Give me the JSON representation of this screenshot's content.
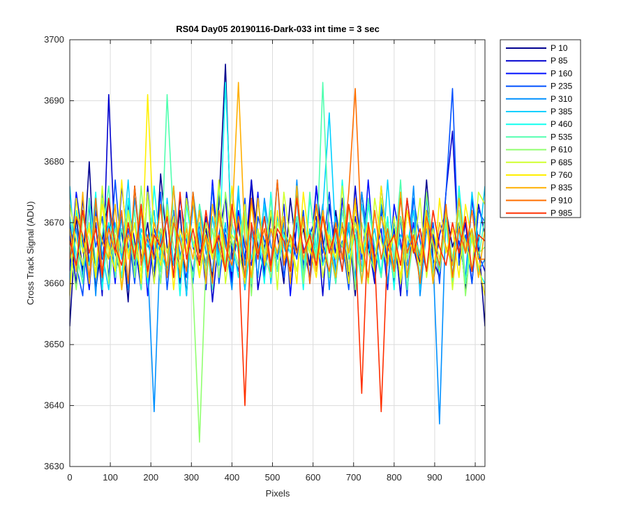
{
  "chart_data": {
    "type": "line",
    "title": "RS04 Day05 20190116-Dark-033 int time = 3 sec",
    "xlabel": "Pixels",
    "ylabel": "Cross Track Signal (ADU)",
    "xlim": [
      0,
      1024
    ],
    "ylim": [
      3630,
      3700
    ],
    "x_ticks": [
      0,
      100,
      200,
      300,
      400,
      500,
      600,
      700,
      800,
      900,
      1000
    ],
    "y_ticks": [
      3630,
      3640,
      3650,
      3660,
      3670,
      3680,
      3690,
      3700
    ],
    "grid": true,
    "legend_position": "outside-top-right",
    "n_points": 1024,
    "series_note": "each series is dark-frame noise around ~3667 ADU; sampled representative values every 16 pixels",
    "x": [
      0,
      16,
      32,
      48,
      64,
      80,
      96,
      112,
      128,
      144,
      160,
      176,
      192,
      208,
      224,
      240,
      256,
      272,
      288,
      304,
      320,
      336,
      352,
      368,
      384,
      400,
      416,
      432,
      448,
      464,
      480,
      496,
      512,
      528,
      544,
      560,
      576,
      592,
      608,
      624,
      640,
      656,
      672,
      688,
      704,
      720,
      736,
      752,
      768,
      784,
      800,
      816,
      832,
      848,
      864,
      880,
      896,
      912,
      928,
      944,
      960,
      976,
      992,
      1008
    ],
    "series": [
      {
        "name": "P 10",
        "color": "#00008F",
        "values": [
          3653,
          3671,
          3662,
          3680,
          3659,
          3667,
          3674,
          3661,
          3669,
          3657,
          3676,
          3664,
          3670,
          3660,
          3678,
          3666,
          3663,
          3672,
          3658,
          3675,
          3665,
          3669,
          3661,
          3673,
          3696,
          3664,
          3670,
          3659,
          3677,
          3666,
          3662,
          3671,
          3668,
          3660,
          3674,
          3665,
          3669,
          3663,
          3676,
          3667,
          3661,
          3672,
          3664,
          3670,
          3658,
          3675,
          3666,
          3662,
          3673,
          3668,
          3660,
          3671,
          3665,
          3669,
          3663,
          3677,
          3664,
          3661,
          3672,
          3666,
          3670,
          3659,
          3674,
          3667
        ]
      },
      {
        "name": "P 85",
        "color": "#0000CF",
        "values": [
          3668,
          3660,
          3674,
          3663,
          3670,
          3658,
          3691,
          3665,
          3661,
          3673,
          3667,
          3659,
          3676,
          3664,
          3669,
          3662,
          3672,
          3660,
          3675,
          3666,
          3663,
          3671,
          3657,
          3668,
          3674,
          3661,
          3670,
          3664,
          3677,
          3659,
          3666,
          3672,
          3662,
          3669,
          3660,
          3675,
          3663,
          3668,
          3671,
          3658,
          3673,
          3665,
          3670,
          3661,
          3676,
          3664,
          3667,
          3660,
          3672,
          3663,
          3669,
          3658,
          3674,
          3666,
          3661,
          3671,
          3668,
          3662,
          3675,
          3685,
          3664,
          3670,
          3660,
          3673
        ]
      },
      {
        "name": "P 160",
        "color": "#0010FF",
        "values": [
          3662,
          3675,
          3667,
          3659,
          3672,
          3664,
          3670,
          3660,
          3676,
          3666,
          3663,
          3673,
          3658,
          3669,
          3665,
          3671,
          3661,
          3674,
          3667,
          3662,
          3670,
          3659,
          3677,
          3664,
          3668,
          3660,
          3672,
          3666,
          3663,
          3675,
          3661,
          3669,
          3664,
          3673,
          3658,
          3670,
          3666,
          3661,
          3676,
          3663,
          3668,
          3660,
          3674,
          3665,
          3671,
          3662,
          3677,
          3664,
          3669,
          3659,
          3673,
          3667,
          3661,
          3670,
          3664,
          3675,
          3660,
          3668,
          3672,
          3663,
          3667,
          3661,
          3674,
          3665
        ]
      },
      {
        "name": "P 235",
        "color": "#0050FF",
        "values": [
          3670,
          3663,
          3658,
          3674,
          3666,
          3671,
          3661,
          3677,
          3664,
          3669,
          3660,
          3672,
          3667,
          3662,
          3675,
          3659,
          3670,
          3665,
          3661,
          3673,
          3668,
          3663,
          3676,
          3660,
          3669,
          3666,
          3662,
          3674,
          3659,
          3671,
          3667,
          3663,
          3677,
          3661,
          3668,
          3664,
          3672,
          3660,
          3670,
          3665,
          3675,
          3662,
          3667,
          3659,
          3673,
          3664,
          3669,
          3661,
          3676,
          3666,
          3663,
          3671,
          3658,
          3674,
          3667,
          3662,
          3670,
          3660,
          3675,
          3692,
          3663,
          3668,
          3660,
          3672
        ]
      },
      {
        "name": "P 310",
        "color": "#0090FF",
        "values": [
          3664,
          3669,
          3661,
          3673,
          3658,
          3675,
          3667,
          3662,
          3671,
          3659,
          3674,
          3666,
          3663,
          3639,
          3668,
          3661,
          3676,
          3664,
          3670,
          3660,
          3673,
          3665,
          3662,
          3672,
          3667,
          3659,
          3675,
          3663,
          3669,
          3661,
          3674,
          3666,
          3664,
          3670,
          3660,
          3677,
          3662,
          3668,
          3665,
          3673,
          3659,
          3671,
          3664,
          3669,
          3661,
          3675,
          3667,
          3662,
          3673,
          3660,
          3670,
          3666,
          3663,
          3676,
          3658,
          3669,
          3664,
          3637,
          3672,
          3661,
          3674,
          3665,
          3668,
          3662
        ]
      },
      {
        "name": "P 385",
        "color": "#00D0FF",
        "values": [
          3676,
          3662,
          3668,
          3660,
          3673,
          3665,
          3659,
          3670,
          3664,
          3677,
          3661,
          3669,
          3666,
          3672,
          3660,
          3674,
          3663,
          3668,
          3658,
          3675,
          3667,
          3661,
          3671,
          3664,
          3670,
          3662,
          3676,
          3659,
          3668,
          3665,
          3673,
          3660,
          3671,
          3666,
          3663,
          3674,
          3661,
          3669,
          3664,
          3672,
          3688,
          3667,
          3662,
          3670,
          3660,
          3673,
          3665,
          3669,
          3661,
          3677,
          3663,
          3668,
          3666,
          3672,
          3659,
          3674,
          3667,
          3662,
          3671,
          3664,
          3669,
          3660,
          3675,
          3666
        ]
      },
      {
        "name": "P 460",
        "color": "#10FFEF",
        "values": [
          3660,
          3672,
          3666,
          3663,
          3675,
          3659,
          3670,
          3667,
          3661,
          3674,
          3664,
          3668,
          3660,
          3676,
          3665,
          3662,
          3671,
          3658,
          3673,
          3666,
          3670,
          3661,
          3669,
          3663,
          3693,
          3667,
          3661,
          3672,
          3664,
          3669,
          3660,
          3675,
          3662,
          3668,
          3665,
          3671,
          3659,
          3674,
          3666,
          3663,
          3670,
          3661,
          3677,
          3664,
          3668,
          3660,
          3673,
          3666,
          3662,
          3671,
          3659,
          3675,
          3664,
          3669,
          3661,
          3672,
          3667,
          3663,
          3670,
          3660,
          3676,
          3665,
          3668,
          3662
        ]
      },
      {
        "name": "P 535",
        "color": "#50FFAF",
        "values": [
          3671,
          3665,
          3660,
          3674,
          3663,
          3668,
          3676,
          3661,
          3669,
          3665,
          3672,
          3659,
          3675,
          3666,
          3662,
          3691,
          3670,
          3664,
          3668,
          3661,
          3673,
          3667,
          3659,
          3676,
          3663,
          3670,
          3665,
          3672,
          3660,
          3668,
          3664,
          3674,
          3662,
          3669,
          3666,
          3671,
          3661,
          3675,
          3664,
          3693,
          3667,
          3660,
          3672,
          3665,
          3669,
          3662,
          3674,
          3666,
          3661,
          3670,
          3664,
          3677,
          3659,
          3668,
          3665,
          3672,
          3661,
          3670,
          3666,
          3663,
          3675,
          3660,
          3669,
          3664
        ]
      },
      {
        "name": "P 610",
        "color": "#90FF6F",
        "values": [
          3666,
          3659,
          3671,
          3667,
          3662,
          3674,
          3660,
          3669,
          3665,
          3672,
          3661,
          3676,
          3663,
          3668,
          3660,
          3673,
          3666,
          3662,
          3670,
          3659,
          3634,
          3664,
          3669,
          3661,
          3675,
          3667,
          3663,
          3671,
          3658,
          3674,
          3665,
          3661,
          3670,
          3667,
          3663,
          3676,
          3660,
          3668,
          3664,
          3672,
          3661,
          3669,
          3666,
          3673,
          3659,
          3670,
          3665,
          3662,
          3674,
          3668,
          3661,
          3671,
          3664,
          3669,
          3660,
          3675,
          3666,
          3662,
          3670,
          3664,
          3672,
          3658,
          3668,
          3665
        ]
      },
      {
        "name": "P 685",
        "color": "#D0FF2F",
        "values": [
          3673,
          3667,
          3663,
          3670,
          3661,
          3676,
          3664,
          3668,
          3659,
          3672,
          3666,
          3662,
          3675,
          3660,
          3669,
          3665,
          3671,
          3662,
          3674,
          3667,
          3661,
          3670,
          3664,
          3677,
          3660,
          3668,
          3666,
          3673,
          3661,
          3669,
          3664,
          3672,
          3659,
          3675,
          3667,
          3662,
          3670,
          3665,
          3673,
          3661,
          3668,
          3664,
          3676,
          3662,
          3670,
          3666,
          3660,
          3674,
          3667,
          3663,
          3671,
          3660,
          3668,
          3665,
          3674,
          3661,
          3669,
          3664,
          3672,
          3659,
          3670,
          3667,
          3662,
          3675
        ]
      },
      {
        "name": "P 760",
        "color": "#FFEF00",
        "values": [
          3658,
          3674,
          3665,
          3669,
          3661,
          3673,
          3666,
          3662,
          3677,
          3664,
          3670,
          3660,
          3691,
          3667,
          3663,
          3672,
          3659,
          3669,
          3665,
          3674,
          3661,
          3668,
          3664,
          3671,
          3662,
          3676,
          3666,
          3660,
          3673,
          3665,
          3669,
          3662,
          3672,
          3664,
          3668,
          3660,
          3675,
          3666,
          3661,
          3671,
          3667,
          3664,
          3669,
          3660,
          3673,
          3665,
          3670,
          3662,
          3676,
          3664,
          3668,
          3661,
          3672,
          3666,
          3663,
          3670,
          3660,
          3674,
          3665,
          3669,
          3661,
          3673,
          3667,
          3663
        ]
      },
      {
        "name": "P 835",
        "color": "#FFAF00",
        "values": [
          3669,
          3662,
          3675,
          3660,
          3671,
          3667,
          3664,
          3673,
          3659,
          3668,
          3665,
          3672,
          3661,
          3670,
          3666,
          3663,
          3676,
          3661,
          3669,
          3664,
          3672,
          3660,
          3673,
          3666,
          3662,
          3670,
          3693,
          3667,
          3661,
          3674,
          3663,
          3669,
          3665,
          3671,
          3660,
          3676,
          3664,
          3668,
          3662,
          3672,
          3666,
          3661,
          3670,
          3665,
          3674,
          3660,
          3669,
          3663,
          3671,
          3667,
          3662,
          3675,
          3661,
          3668,
          3664,
          3672,
          3660,
          3670,
          3666,
          3663,
          3674,
          3665,
          3669,
          3661
        ]
      },
      {
        "name": "P 910",
        "color": "#FF6F00",
        "values": [
          3664,
          3671,
          3668,
          3661,
          3674,
          3662,
          3669,
          3665,
          3672,
          3660,
          3676,
          3663,
          3668,
          3664,
          3673,
          3661,
          3670,
          3667,
          3662,
          3675,
          3664,
          3668,
          3660,
          3672,
          3666,
          3663,
          3671,
          3661,
          3674,
          3665,
          3669,
          3662,
          3677,
          3663,
          3668,
          3665,
          3671,
          3660,
          3673,
          3666,
          3662,
          3670,
          3664,
          3675,
          3692,
          3667,
          3661,
          3672,
          3664,
          3669,
          3662,
          3674,
          3665,
          3668,
          3660,
          3671,
          3667,
          3663,
          3673,
          3661,
          3669,
          3665,
          3672,
          3664
        ]
      },
      {
        "name": "P 985",
        "color": "#FF2F00",
        "values": [
          3667,
          3663,
          3672,
          3665,
          3669,
          3661,
          3674,
          3666,
          3663,
          3670,
          3664,
          3673,
          3662,
          3668,
          3666,
          3671,
          3661,
          3675,
          3664,
          3669,
          3663,
          3672,
          3665,
          3668,
          3662,
          3673,
          3666,
          3640,
          3670,
          3664,
          3671,
          3663,
          3669,
          3667,
          3662,
          3674,
          3665,
          3668,
          3663,
          3671,
          3665,
          3669,
          3662,
          3673,
          3667,
          3642,
          3670,
          3664,
          3639,
          3666,
          3668,
          3663,
          3674,
          3665,
          3669,
          3662,
          3672,
          3666,
          3663,
          3670,
          3665,
          3671,
          3662,
          3668
        ]
      }
    ]
  }
}
